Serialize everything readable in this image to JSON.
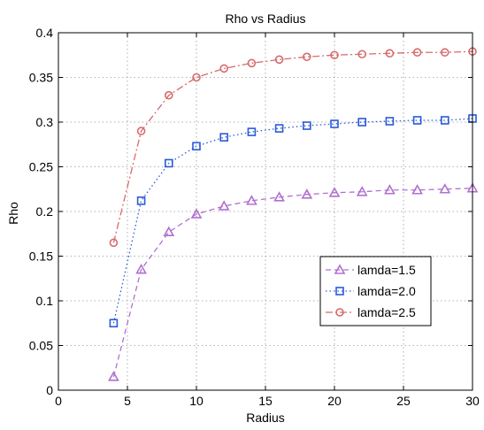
{
  "chart_data": {
    "type": "line",
    "title": "Rho vs Radius",
    "xlabel": "Radius",
    "ylabel": "Rho",
    "xlim": [
      0,
      30
    ],
    "ylim": [
      0,
      0.4
    ],
    "xticks": [
      0,
      5,
      10,
      15,
      20,
      25,
      30
    ],
    "yticks": [
      0,
      0.05,
      0.1,
      0.15,
      0.2,
      0.25,
      0.3,
      0.35,
      0.4
    ],
    "xtick_labels": [
      "0",
      "5",
      "10",
      "15",
      "20",
      "25",
      "30"
    ],
    "ytick_labels": [
      "0",
      "0.05",
      "0.1",
      "0.15",
      "0.2",
      "0.25",
      "0.3",
      "0.35",
      "0.4"
    ],
    "grid": true,
    "legend_position": "lower-right",
    "x": [
      4,
      6,
      8,
      10,
      12,
      14,
      16,
      18,
      20,
      22,
      24,
      26,
      28,
      30
    ],
    "series": [
      {
        "name": "lamda=1.5",
        "color": "#b070d0",
        "marker": "triangle",
        "line_style": "dashed",
        "values": [
          0.015,
          0.135,
          0.177,
          0.197,
          0.206,
          0.212,
          0.216,
          0.219,
          0.221,
          0.222,
          0.224,
          0.224,
          0.225,
          0.226
        ]
      },
      {
        "name": "lamda=2.0",
        "color": "#2a5bd7",
        "marker": "square",
        "line_style": "dotted",
        "values": [
          0.075,
          0.212,
          0.254,
          0.273,
          0.283,
          0.289,
          0.293,
          0.296,
          0.298,
          0.3,
          0.301,
          0.302,
          0.302,
          0.304
        ]
      },
      {
        "name": "lamda=2.5",
        "color": "#d76a6a",
        "marker": "circle",
        "line_style": "dashdot",
        "values": [
          0.165,
          0.29,
          0.33,
          0.35,
          0.36,
          0.366,
          0.37,
          0.373,
          0.375,
          0.376,
          0.377,
          0.378,
          0.378,
          0.379
        ]
      }
    ]
  }
}
